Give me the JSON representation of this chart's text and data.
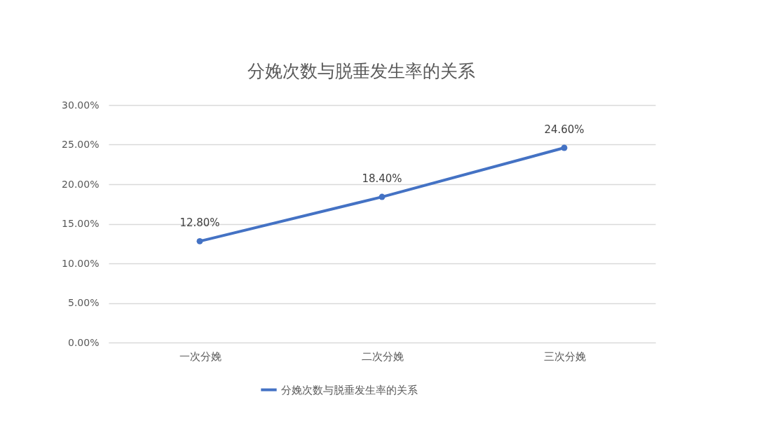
{
  "chart_data": {
    "type": "line",
    "title": "分娩次数与脱垂发生率的关系",
    "categories": [
      "一次分娩",
      "二次分娩",
      "三次分娩"
    ],
    "series": [
      {
        "name": "分娩次数与脱垂发生率的关系",
        "color": "#4472c4",
        "values": [
          12.8,
          18.4,
          24.6
        ],
        "value_labels": [
          "12.80%",
          "18.40%",
          "24.60%"
        ]
      }
    ],
    "ylim": [
      0,
      30
    ],
    "yticks": [
      {
        "value": 0,
        "label": "0.00%"
      },
      {
        "value": 5,
        "label": "5.00%"
      },
      {
        "value": 10,
        "label": "10.00%"
      },
      {
        "value": 15,
        "label": "15.00%"
      },
      {
        "value": 20,
        "label": "20.00%"
      },
      {
        "value": 25,
        "label": "25.00%"
      },
      {
        "value": 30,
        "label": "30.00%"
      }
    ],
    "grid": "y",
    "legend": "bottom",
    "marker": "circle",
    "line_style": "solid"
  }
}
